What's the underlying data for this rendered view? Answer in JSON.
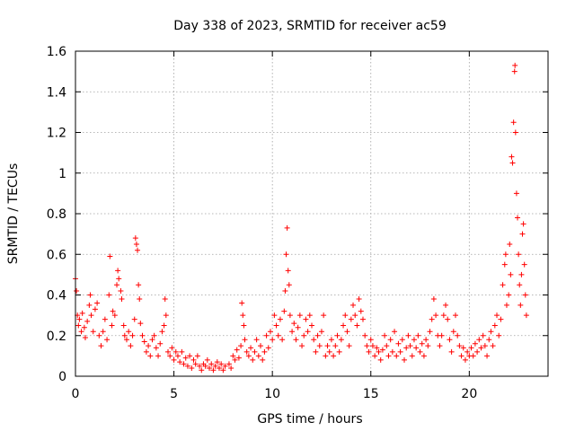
{
  "chart_data": {
    "type": "scatter",
    "title": "Day 338 of 2023, SRMTID for receiver ac59",
    "xlabel": "GPS time / hours",
    "ylabel": "SRMTID / TECUs",
    "xlim": [
      0,
      24
    ],
    "ylim": [
      0,
      1.6
    ],
    "xticks": [
      0,
      5,
      10,
      15,
      20
    ],
    "xtick_labels": [
      "0",
      "5",
      "10",
      "15",
      "20"
    ],
    "yticks": [
      0,
      0.2,
      0.4,
      0.6,
      0.8,
      1.0,
      1.2,
      1.4,
      1.6
    ],
    "ytick_labels": [
      "0",
      "0.2",
      "0.4",
      "0.6",
      "0.8",
      "1",
      "1.2",
      "1.4",
      "1.6"
    ],
    "grid": true,
    "marker": "+",
    "color": "#ff0000",
    "series": [
      {
        "name": "SRMTID",
        "points": [
          [
            0.0,
            0.48
          ],
          [
            0.05,
            0.42
          ],
          [
            0.1,
            0.3
          ],
          [
            0.15,
            0.25
          ],
          [
            0.2,
            0.28
          ],
          [
            0.3,
            0.22
          ],
          [
            0.35,
            0.31
          ],
          [
            0.45,
            0.24
          ],
          [
            0.5,
            0.19
          ],
          [
            0.6,
            0.27
          ],
          [
            0.7,
            0.35
          ],
          [
            0.75,
            0.4
          ],
          [
            0.8,
            0.3
          ],
          [
            0.9,
            0.22
          ],
          [
            1.0,
            0.33
          ],
          [
            1.1,
            0.36
          ],
          [
            1.2,
            0.2
          ],
          [
            1.3,
            0.15
          ],
          [
            1.4,
            0.22
          ],
          [
            1.5,
            0.28
          ],
          [
            1.6,
            0.18
          ],
          [
            1.7,
            0.4
          ],
          [
            1.75,
            0.59
          ],
          [
            1.85,
            0.25
          ],
          [
            1.9,
            0.32
          ],
          [
            2.0,
            0.3
          ],
          [
            2.1,
            0.45
          ],
          [
            2.15,
            0.52
          ],
          [
            2.2,
            0.48
          ],
          [
            2.3,
            0.42
          ],
          [
            2.35,
            0.38
          ],
          [
            2.45,
            0.25
          ],
          [
            2.5,
            0.2
          ],
          [
            2.6,
            0.18
          ],
          [
            2.7,
            0.22
          ],
          [
            2.8,
            0.15
          ],
          [
            2.9,
            0.2
          ],
          [
            3.0,
            0.28
          ],
          [
            3.05,
            0.68
          ],
          [
            3.1,
            0.65
          ],
          [
            3.15,
            0.62
          ],
          [
            3.2,
            0.45
          ],
          [
            3.25,
            0.38
          ],
          [
            3.3,
            0.26
          ],
          [
            3.4,
            0.2
          ],
          [
            3.5,
            0.17
          ],
          [
            3.6,
            0.12
          ],
          [
            3.7,
            0.15
          ],
          [
            3.8,
            0.1
          ],
          [
            3.9,
            0.18
          ],
          [
            4.0,
            0.2
          ],
          [
            4.1,
            0.14
          ],
          [
            4.2,
            0.1
          ],
          [
            4.3,
            0.16
          ],
          [
            4.4,
            0.22
          ],
          [
            4.5,
            0.25
          ],
          [
            4.55,
            0.38
          ],
          [
            4.6,
            0.3
          ],
          [
            4.7,
            0.12
          ],
          [
            4.8,
            0.1
          ],
          [
            4.9,
            0.14
          ],
          [
            5.0,
            0.08
          ],
          [
            5.1,
            0.12
          ],
          [
            5.2,
            0.1
          ],
          [
            5.3,
            0.07
          ],
          [
            5.4,
            0.12
          ],
          [
            5.5,
            0.06
          ],
          [
            5.6,
            0.09
          ],
          [
            5.7,
            0.05
          ],
          [
            5.8,
            0.1
          ],
          [
            5.9,
            0.04
          ],
          [
            6.0,
            0.08
          ],
          [
            6.1,
            0.06
          ],
          [
            6.2,
            0.1
          ],
          [
            6.3,
            0.05
          ],
          [
            6.4,
            0.03
          ],
          [
            6.5,
            0.06
          ],
          [
            6.6,
            0.05
          ],
          [
            6.7,
            0.08
          ],
          [
            6.8,
            0.04
          ],
          [
            6.9,
            0.06
          ],
          [
            7.0,
            0.03
          ],
          [
            7.1,
            0.05
          ],
          [
            7.2,
            0.07
          ],
          [
            7.3,
            0.04
          ],
          [
            7.4,
            0.06
          ],
          [
            7.5,
            0.03
          ],
          [
            7.6,
            0.05
          ],
          [
            7.8,
            0.06
          ],
          [
            7.9,
            0.04
          ],
          [
            8.0,
            0.1
          ],
          [
            8.1,
            0.08
          ],
          [
            8.2,
            0.13
          ],
          [
            8.3,
            0.09
          ],
          [
            8.4,
            0.15
          ],
          [
            8.45,
            0.36
          ],
          [
            8.5,
            0.3
          ],
          [
            8.55,
            0.25
          ],
          [
            8.6,
            0.18
          ],
          [
            8.7,
            0.12
          ],
          [
            8.8,
            0.1
          ],
          [
            8.9,
            0.14
          ],
          [
            9.0,
            0.08
          ],
          [
            9.1,
            0.12
          ],
          [
            9.2,
            0.18
          ],
          [
            9.3,
            0.1
          ],
          [
            9.4,
            0.15
          ],
          [
            9.5,
            0.08
          ],
          [
            9.6,
            0.12
          ],
          [
            9.7,
            0.2
          ],
          [
            9.8,
            0.14
          ],
          [
            9.9,
            0.22
          ],
          [
            10.0,
            0.18
          ],
          [
            10.1,
            0.3
          ],
          [
            10.2,
            0.25
          ],
          [
            10.3,
            0.2
          ],
          [
            10.4,
            0.28
          ],
          [
            10.5,
            0.18
          ],
          [
            10.6,
            0.32
          ],
          [
            10.65,
            0.42
          ],
          [
            10.7,
            0.6
          ],
          [
            10.75,
            0.73
          ],
          [
            10.8,
            0.52
          ],
          [
            10.85,
            0.45
          ],
          [
            10.9,
            0.3
          ],
          [
            11.0,
            0.22
          ],
          [
            11.1,
            0.26
          ],
          [
            11.2,
            0.18
          ],
          [
            11.3,
            0.24
          ],
          [
            11.4,
            0.3
          ],
          [
            11.5,
            0.15
          ],
          [
            11.6,
            0.2
          ],
          [
            11.7,
            0.28
          ],
          [
            11.8,
            0.22
          ],
          [
            11.9,
            0.3
          ],
          [
            12.0,
            0.25
          ],
          [
            12.1,
            0.18
          ],
          [
            12.2,
            0.12
          ],
          [
            12.3,
            0.2
          ],
          [
            12.4,
            0.15
          ],
          [
            12.5,
            0.22
          ],
          [
            12.6,
            0.3
          ],
          [
            12.7,
            0.1
          ],
          [
            12.8,
            0.15
          ],
          [
            12.9,
            0.12
          ],
          [
            13.0,
            0.18
          ],
          [
            13.1,
            0.1
          ],
          [
            13.2,
            0.15
          ],
          [
            13.3,
            0.2
          ],
          [
            13.4,
            0.12
          ],
          [
            13.5,
            0.18
          ],
          [
            13.6,
            0.25
          ],
          [
            13.7,
            0.3
          ],
          [
            13.8,
            0.22
          ],
          [
            13.9,
            0.15
          ],
          [
            14.0,
            0.28
          ],
          [
            14.1,
            0.35
          ],
          [
            14.2,
            0.3
          ],
          [
            14.3,
            0.25
          ],
          [
            14.4,
            0.38
          ],
          [
            14.5,
            0.32
          ],
          [
            14.6,
            0.28
          ],
          [
            14.7,
            0.2
          ],
          [
            14.8,
            0.15
          ],
          [
            14.9,
            0.12
          ],
          [
            15.0,
            0.18
          ],
          [
            15.1,
            0.15
          ],
          [
            15.2,
            0.1
          ],
          [
            15.3,
            0.14
          ],
          [
            15.4,
            0.12
          ],
          [
            15.5,
            0.08
          ],
          [
            15.6,
            0.13
          ],
          [
            15.7,
            0.2
          ],
          [
            15.8,
            0.15
          ],
          [
            15.9,
            0.1
          ],
          [
            16.0,
            0.18
          ],
          [
            16.1,
            0.12
          ],
          [
            16.2,
            0.22
          ],
          [
            16.3,
            0.1
          ],
          [
            16.4,
            0.16
          ],
          [
            16.5,
            0.12
          ],
          [
            16.6,
            0.18
          ],
          [
            16.7,
            0.08
          ],
          [
            16.8,
            0.14
          ],
          [
            16.9,
            0.2
          ],
          [
            17.0,
            0.15
          ],
          [
            17.1,
            0.1
          ],
          [
            17.2,
            0.18
          ],
          [
            17.3,
            0.14
          ],
          [
            17.4,
            0.2
          ],
          [
            17.5,
            0.12
          ],
          [
            17.6,
            0.16
          ],
          [
            17.7,
            0.1
          ],
          [
            17.8,
            0.18
          ],
          [
            17.9,
            0.15
          ],
          [
            18.0,
            0.22
          ],
          [
            18.1,
            0.28
          ],
          [
            18.2,
            0.38
          ],
          [
            18.3,
            0.3
          ],
          [
            18.4,
            0.2
          ],
          [
            18.5,
            0.15
          ],
          [
            18.6,
            0.2
          ],
          [
            18.7,
            0.3
          ],
          [
            18.8,
            0.35
          ],
          [
            18.9,
            0.28
          ],
          [
            19.0,
            0.18
          ],
          [
            19.1,
            0.12
          ],
          [
            19.2,
            0.22
          ],
          [
            19.3,
            0.3
          ],
          [
            19.4,
            0.2
          ],
          [
            19.5,
            0.15
          ],
          [
            19.6,
            0.1
          ],
          [
            19.7,
            0.14
          ],
          [
            19.8,
            0.08
          ],
          [
            19.9,
            0.12
          ],
          [
            20.0,
            0.1
          ],
          [
            20.1,
            0.14
          ],
          [
            20.2,
            0.1
          ],
          [
            20.3,
            0.16
          ],
          [
            20.4,
            0.12
          ],
          [
            20.5,
            0.18
          ],
          [
            20.6,
            0.14
          ],
          [
            20.7,
            0.2
          ],
          [
            20.8,
            0.15
          ],
          [
            20.9,
            0.1
          ],
          [
            21.0,
            0.18
          ],
          [
            21.1,
            0.22
          ],
          [
            21.2,
            0.15
          ],
          [
            21.3,
            0.25
          ],
          [
            21.4,
            0.3
          ],
          [
            21.5,
            0.2
          ],
          [
            21.6,
            0.28
          ],
          [
            21.7,
            0.45
          ],
          [
            21.8,
            0.55
          ],
          [
            21.85,
            0.6
          ],
          [
            21.9,
            0.35
          ],
          [
            22.0,
            0.4
          ],
          [
            22.05,
            0.65
          ],
          [
            22.1,
            0.5
          ],
          [
            22.15,
            1.08
          ],
          [
            22.2,
            1.05
          ],
          [
            22.25,
            1.25
          ],
          [
            22.3,
            1.5
          ],
          [
            22.32,
            1.53
          ],
          [
            22.35,
            1.2
          ],
          [
            22.4,
            0.9
          ],
          [
            22.45,
            0.78
          ],
          [
            22.5,
            0.6
          ],
          [
            22.55,
            0.45
          ],
          [
            22.6,
            0.35
          ],
          [
            22.65,
            0.5
          ],
          [
            22.7,
            0.7
          ],
          [
            22.75,
            0.75
          ],
          [
            22.8,
            0.55
          ],
          [
            22.85,
            0.4
          ],
          [
            22.9,
            0.3
          ]
        ]
      }
    ]
  }
}
